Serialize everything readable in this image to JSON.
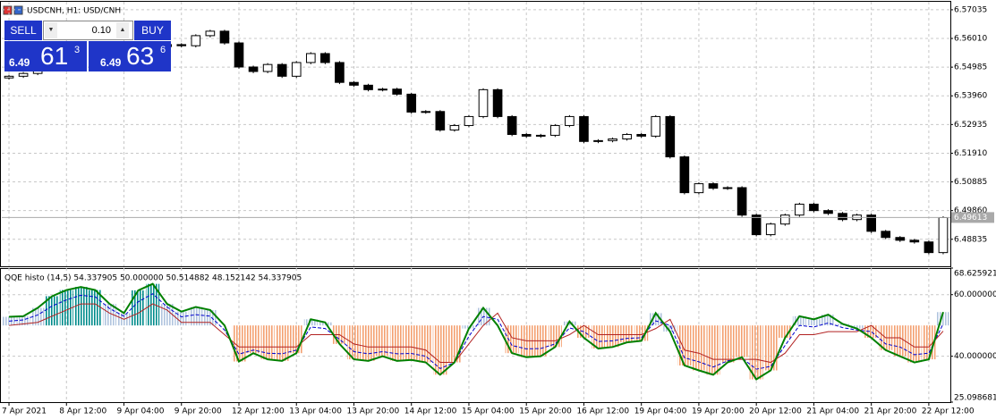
{
  "chart_data": [
    {
      "type": "candlestick",
      "title": "USDCNH, H1:  USD/CNH",
      "categories": [
        "7 Apr 2021",
        null,
        null,
        null,
        "8 Apr 12:00",
        null,
        null,
        null,
        "9 Apr 04:00",
        null,
        null,
        null,
        "9 Apr 20:00",
        null,
        null,
        null,
        "12 Apr 12:00",
        null,
        null,
        null,
        "13 Apr 04:00",
        null,
        null,
        null,
        "13 Apr 20:00",
        null,
        null,
        null,
        "14 Apr 12:00",
        null,
        null,
        null,
        "15 Apr 04:00",
        null,
        null,
        null,
        "15 Apr 20:00",
        null,
        null,
        null,
        "16 Apr 12:00",
        null,
        null,
        null,
        "19 Apr 04:00",
        null,
        null,
        null,
        "19 Apr 20:00",
        null,
        null,
        null,
        "20 Apr 12:00",
        null,
        null,
        null,
        "21 Apr 04:00",
        null,
        null,
        null,
        "21 Apr 20:00",
        null,
        null,
        null,
        "22 Apr 12:00",
        null
      ],
      "open": [
        6.546,
        6.5466,
        6.5476,
        6.5489,
        6.5499,
        6.5508,
        6.5521,
        6.5531,
        6.554,
        6.5553,
        6.5563,
        6.5572,
        6.5579,
        6.5575,
        6.5611,
        6.5627,
        6.5585,
        6.5499,
        6.5483,
        6.5508,
        6.5466,
        6.5515,
        6.5547,
        6.5515,
        6.5444,
        6.5434,
        6.5418,
        6.542,
        6.5402,
        6.5338,
        6.534,
        6.5274,
        6.529,
        6.5322,
        6.5418,
        6.5322,
        6.5258,
        6.5252,
        6.5255,
        6.529,
        6.5322,
        6.5233,
        6.5236,
        6.5242,
        6.5258,
        6.5252,
        6.5322,
        6.5178,
        6.505,
        6.5082,
        6.5066,
        6.5068,
        6.497,
        6.49,
        6.4938,
        6.497,
        6.5009,
        6.4986,
        6.4976,
        6.4954,
        6.497,
        6.4912,
        6.489,
        6.488,
        6.4874,
        6.4836
      ],
      "high": [
        6.5471,
        6.5481,
        6.5494,
        6.5504,
        6.5513,
        6.5526,
        6.5536,
        6.5545,
        6.5558,
        6.5568,
        6.5577,
        6.5584,
        6.5584,
        6.5616,
        6.5632,
        6.5632,
        6.559,
        6.5504,
        6.5513,
        6.5513,
        6.552,
        6.5552,
        6.5552,
        6.552,
        6.5449,
        6.5439,
        6.5425,
        6.5425,
        6.5407,
        6.5345,
        6.5345,
        6.5295,
        6.5327,
        6.5423,
        6.5423,
        6.5327,
        6.5263,
        6.526,
        6.5295,
        6.5327,
        6.5327,
        6.5241,
        6.5247,
        6.5263,
        6.5263,
        6.5327,
        6.5327,
        6.5183,
        6.5087,
        6.5087,
        6.5073,
        6.5073,
        6.4975,
        6.4943,
        6.4975,
        6.5014,
        6.5014,
        6.4991,
        6.4981,
        6.4975,
        6.4975,
        6.4917,
        6.4895,
        6.4885,
        6.4879,
        6.4966
      ],
      "low": [
        6.5454,
        6.546,
        6.547,
        6.5483,
        6.5493,
        6.5502,
        6.5515,
        6.5525,
        6.5534,
        6.5547,
        6.5557,
        6.5566,
        6.5569,
        6.5569,
        6.5605,
        6.5579,
        6.5493,
        6.5477,
        6.5477,
        6.546,
        6.546,
        6.5509,
        6.5509,
        6.5438,
        6.5428,
        6.5412,
        6.5412,
        6.5396,
        6.5332,
        6.5332,
        6.5268,
        6.5268,
        6.5284,
        6.5316,
        6.5316,
        6.5252,
        6.5246,
        6.5246,
        6.5249,
        6.5284,
        6.5227,
        6.5227,
        6.523,
        6.5236,
        6.5246,
        6.5246,
        6.5172,
        6.5044,
        6.5044,
        6.506,
        6.506,
        6.4964,
        6.4894,
        6.4894,
        6.4932,
        6.4964,
        6.498,
        6.497,
        6.4948,
        6.4948,
        6.4906,
        6.4884,
        6.4874,
        6.4868,
        6.483,
        6.483
      ],
      "close": [
        6.5466,
        6.5476,
        6.5489,
        6.5499,
        6.5508,
        6.5521,
        6.5531,
        6.554,
        6.5553,
        6.5563,
        6.5572,
        6.5579,
        6.5575,
        6.5611,
        6.5627,
        6.5585,
        6.5499,
        6.5483,
        6.5508,
        6.5466,
        6.5515,
        6.5547,
        6.5515,
        6.5444,
        6.5434,
        6.5418,
        6.542,
        6.5402,
        6.5338,
        6.534,
        6.5274,
        6.529,
        6.5322,
        6.5418,
        6.5322,
        6.5258,
        6.5252,
        6.5255,
        6.529,
        6.5322,
        6.5233,
        6.5236,
        6.5242,
        6.5258,
        6.5252,
        6.5322,
        6.5178,
        6.505,
        6.5082,
        6.5066,
        6.5068,
        6.497,
        6.49,
        6.4938,
        6.497,
        6.5009,
        6.4986,
        6.4976,
        6.4954,
        6.497,
        6.4912,
        6.489,
        6.488,
        6.4874,
        6.4836,
        6.4961
      ],
      "ylim": [
        6.4787,
        6.5732
      ],
      "yticks": [
        6.57035,
        {
          "value": 6.5601,
          "label": "6.56010"
        },
        6.54985,
        {
          "value": 6.5396,
          "label": "6.53960"
        },
        6.52935,
        {
          "value": 6.5191,
          "label": "6.51910"
        },
        6.50885,
        {
          "value": 6.4986,
          "label": "6.49860"
        },
        6.48835
      ],
      "last_price": 6.49613,
      "grid": true,
      "up_color": "#ffffff",
      "down_color": "#000000",
      "wick_color": "#000000"
    },
    {
      "type": "histogram_lines",
      "title": "QQE histo (14,5) 54.337905 50.000000 50.514882 48.152142 54.337905",
      "baseline": 50,
      "ylim": [
        25.098681,
        68.625921
      ],
      "yticks": [
        68.625921,
        {
          "value": 60,
          "label": "60.000000"
        },
        {
          "value": 40,
          "label": "40.000000"
        },
        25.098681
      ],
      "grid": true,
      "histogram": {
        "series": 0,
        "thresholds": [
          48,
          58
        ],
        "colors": {
          "down": "#f4a070",
          "neutral": "#b0c4de",
          "up": "#008b8b"
        }
      },
      "series": [
        {
          "color": "#008000",
          "width": 2,
          "values": [
            52.8,
            53,
            55.7,
            59.5,
            61.5,
            62.5,
            61.5,
            57,
            54,
            61.4,
            63.5,
            57,
            54.5,
            56,
            55,
            50,
            38.3,
            41,
            39,
            38.5,
            41,
            52,
            51,
            44,
            39,
            38.5,
            40,
            38.5,
            38.8,
            38,
            34,
            38,
            49,
            55.7,
            50,
            41,
            39.7,
            40,
            43,
            51.3,
            46,
            42.5,
            43,
            44.5,
            45,
            54,
            48,
            37,
            35.4,
            34,
            38,
            39.7,
            32.5,
            35.4,
            46,
            53,
            52,
            53.5,
            50.5,
            49,
            46,
            42,
            40,
            38,
            39,
            54.337905
          ]
        },
        {
          "color": "#b22222",
          "width": 1,
          "values": [
            50,
            50.5,
            51,
            53,
            55,
            57,
            57,
            54,
            52,
            54,
            57,
            55,
            51,
            51,
            51,
            47,
            43,
            43,
            43,
            43,
            43,
            47,
            47,
            47,
            44,
            43,
            43,
            43,
            43,
            42,
            38,
            38,
            44,
            50,
            54,
            46,
            45,
            45,
            45,
            47,
            50,
            47,
            47,
            47,
            47,
            49,
            52,
            42,
            41,
            39,
            39,
            39,
            39,
            38,
            41,
            47,
            47,
            48,
            48,
            48,
            50,
            46,
            46,
            43,
            43,
            48.152142
          ]
        },
        {
          "color": "#0000cd",
          "width": 1,
          "dashed": true,
          "values": [
            51.4,
            51.8,
            53.4,
            56.3,
            58.3,
            59.8,
            59.3,
            55.5,
            53,
            57.7,
            60.3,
            56,
            52.8,
            53.5,
            53,
            48.5,
            40.7,
            42,
            41,
            40.8,
            42,
            49.5,
            49,
            45.5,
            41.5,
            40.8,
            41.5,
            40.8,
            40.9,
            40,
            36,
            38,
            46.5,
            52.9,
            52,
            43.5,
            42.4,
            42.5,
            44,
            49.2,
            48,
            44.8,
            45,
            45.8,
            46,
            51.5,
            50,
            39.5,
            38.2,
            36.5,
            38.5,
            39.4,
            35.8,
            36.7,
            43.5,
            50,
            49.5,
            50.8,
            49.3,
            48.5,
            48,
            44,
            43,
            40.5,
            41,
            50.514882
          ]
        }
      ]
    }
  ],
  "trade_panel": {
    "sell": "SELL",
    "lot": "0.10",
    "buy": "BUY",
    "bid_prefix": "6.49",
    "bid_big": "61",
    "bid_small": "3",
    "ask_prefix": "6.49",
    "ask_big": "63",
    "ask_small": "6"
  }
}
